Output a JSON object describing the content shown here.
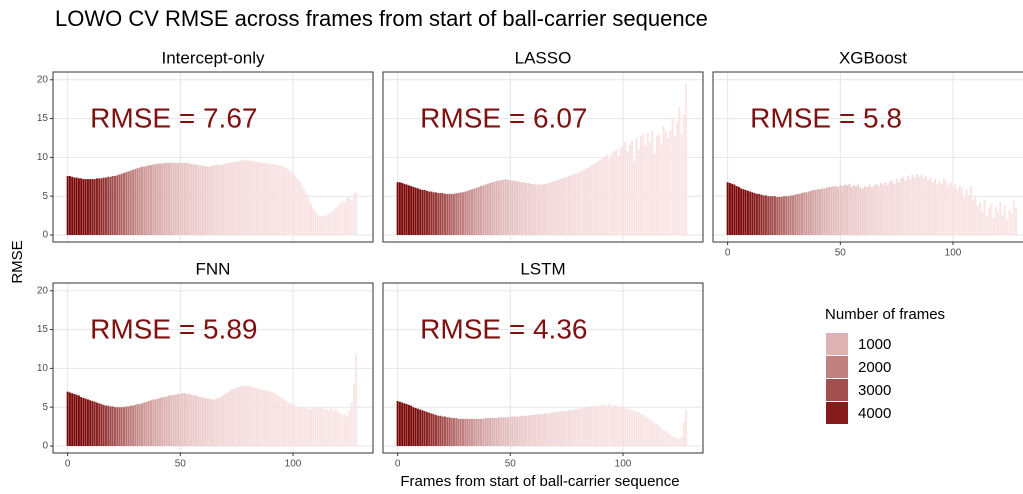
{
  "chart_data": {
    "type": "bar",
    "title": "LOWO CV RMSE across frames from start of ball-carrier sequence",
    "x_label": "Frames from start of ball-carrier sequence",
    "y_label": "RMSE",
    "x": [
      0,
      1,
      2,
      3,
      4,
      5,
      6,
      7,
      8,
      9,
      10,
      11,
      12,
      13,
      14,
      15,
      16,
      17,
      18,
      19,
      20,
      21,
      22,
      23,
      24,
      25,
      26,
      27,
      28,
      29,
      30,
      31,
      32,
      33,
      34,
      35,
      36,
      37,
      38,
      39,
      40,
      41,
      42,
      43,
      44,
      45,
      46,
      47,
      48,
      49,
      50,
      51,
      52,
      53,
      54,
      55,
      56,
      57,
      58,
      59,
      60,
      61,
      62,
      63,
      64,
      65,
      66,
      67,
      68,
      69,
      70,
      71,
      72,
      73,
      74,
      75,
      76,
      77,
      78,
      79,
      80,
      81,
      82,
      83,
      84,
      85,
      86,
      87,
      88,
      89,
      90,
      91,
      92,
      93,
      94,
      95,
      96,
      97,
      98,
      99,
      100,
      101,
      102,
      103,
      104,
      105,
      106,
      107,
      108,
      109,
      110,
      111,
      112,
      113,
      114,
      115,
      116,
      117,
      118,
      119,
      120,
      121,
      122,
      123,
      124,
      125,
      126,
      127,
      128
    ],
    "frame_counts": [
      4400,
      4400,
      4400,
      4400,
      4390,
      4380,
      4360,
      4330,
      4290,
      4240,
      4170,
      4090,
      4000,
      3900,
      3790,
      3670,
      3550,
      3420,
      3290,
      3160,
      3030,
      2900,
      2770,
      2650,
      2530,
      2410,
      2300,
      2190,
      2090,
      1990,
      1900,
      1810,
      1720,
      1640,
      1560,
      1490,
      1420,
      1350,
      1290,
      1230,
      1170,
      1110,
      1060,
      1010,
      960,
      915,
      870,
      830,
      790,
      750,
      715,
      680,
      650,
      620,
      590,
      560,
      535,
      510,
      485,
      460,
      440,
      420,
      400,
      380,
      362,
      345,
      328,
      312,
      297,
      283,
      270,
      257,
      245,
      233,
      222,
      211,
      201,
      191,
      182,
      173,
      165,
      157,
      149,
      142,
      135,
      128,
      122,
      116,
      110,
      105,
      100,
      95,
      90,
      86,
      82,
      78,
      74,
      70,
      67,
      64,
      61,
      58,
      55,
      52,
      49,
      47,
      45,
      43,
      41,
      39,
      37,
      35,
      33,
      31,
      29,
      27,
      25,
      23,
      21,
      19,
      17,
      15,
      13,
      11,
      9,
      7,
      5,
      3,
      2
    ],
    "xlim": [
      -6.5,
      135.5
    ],
    "xticks": [
      0,
      50,
      100
    ],
    "ylim": [
      -0.9,
      21
    ],
    "yticks": [
      0,
      5,
      10,
      15,
      20
    ],
    "grid": true,
    "color_scale": {
      "low": "#ddb3b3",
      "high": "#861b1b"
    },
    "legend": {
      "title": "Number of frames",
      "keys": [
        1000,
        2000,
        3000,
        4000
      ]
    },
    "panels": [
      {
        "title": "Intercept-only",
        "annotation": "RMSE = 7.67",
        "values": [
          7.6,
          7.6,
          7.5,
          7.4,
          7.4,
          7.3,
          7.3,
          7.2,
          7.2,
          7.2,
          7.2,
          7.2,
          7.2,
          7.3,
          7.3,
          7.3,
          7.4,
          7.4,
          7.5,
          7.5,
          7.6,
          7.6,
          7.7,
          7.8,
          7.9,
          8.0,
          8.1,
          8.2,
          8.3,
          8.4,
          8.5,
          8.6,
          8.7,
          8.8,
          8.8,
          8.9,
          9.0,
          9.0,
          9.1,
          9.1,
          9.2,
          9.2,
          9.2,
          9.3,
          9.3,
          9.3,
          9.3,
          9.3,
          9.3,
          9.3,
          9.3,
          9.3,
          9.3,
          9.3,
          9.2,
          9.2,
          9.1,
          9.1,
          9.0,
          9.0,
          8.9,
          8.9,
          8.8,
          8.8,
          8.9,
          9.0,
          9.0,
          9.1,
          9.0,
          9.1,
          9.2,
          9.2,
          9.3,
          9.4,
          9.4,
          9.5,
          9.5,
          9.6,
          9.6,
          9.7,
          9.6,
          9.6,
          9.5,
          9.5,
          9.4,
          9.4,
          9.3,
          9.3,
          9.3,
          9.2,
          9.2,
          9.1,
          9.1,
          9.0,
          9.0,
          8.9,
          8.8,
          8.6,
          8.4,
          8.2,
          8.0,
          7.7,
          7.3,
          6.9,
          6.4,
          5.9,
          5.3,
          4.7,
          4.1,
          3.5,
          3.0,
          2.6,
          2.5,
          2.4,
          2.4,
          2.6,
          2.8,
          3.0,
          3.2,
          3.5,
          3.8,
          4.1,
          4.4,
          4.2,
          4.8,
          5.0,
          4.5,
          5.3,
          5.5
        ]
      },
      {
        "title": "LASSO",
        "annotation": "RMSE = 6.07",
        "values": [
          6.8,
          6.8,
          6.7,
          6.6,
          6.5,
          6.4,
          6.3,
          6.2,
          6.1,
          6.0,
          5.9,
          5.8,
          5.8,
          5.7,
          5.6,
          5.6,
          5.5,
          5.5,
          5.4,
          5.4,
          5.4,
          5.3,
          5.3,
          5.3,
          5.3,
          5.3,
          5.4,
          5.4,
          5.5,
          5.5,
          5.6,
          5.7,
          5.8,
          5.9,
          6.0,
          6.1,
          6.2,
          6.3,
          6.4,
          6.5,
          6.6,
          6.7,
          6.8,
          6.9,
          7.0,
          7.0,
          7.1,
          7.1,
          7.2,
          7.1,
          7.1,
          7.0,
          7.0,
          6.9,
          6.9,
          6.8,
          6.8,
          6.7,
          6.7,
          6.6,
          6.6,
          6.5,
          6.5,
          6.5,
          6.5,
          6.6,
          6.6,
          6.7,
          6.8,
          6.9,
          7.0,
          7.1,
          7.2,
          7.3,
          7.4,
          7.5,
          7.6,
          7.7,
          7.8,
          7.9,
          8.0,
          8.1,
          8.3,
          8.4,
          8.6,
          8.8,
          9.0,
          9.1,
          9.3,
          9.5,
          9.7,
          9.9,
          10.1,
          10.3,
          9.8,
          10.5,
          10.8,
          11.0,
          10.2,
          11.3,
          11.5,
          12.0,
          10.8,
          11.6,
          12.2,
          9.5,
          12.5,
          11.0,
          12.8,
          13.0,
          11.5,
          13.2,
          12.0,
          13.5,
          10.5,
          12.8,
          13.0,
          11.8,
          14.0,
          13.3,
          12.5,
          13.5,
          15.0,
          12.8,
          14.5,
          16.5,
          13.0,
          15.5,
          19.5
        ]
      },
      {
        "title": "XGBoost",
        "annotation": "RMSE = 5.8",
        "values": [
          6.8,
          6.7,
          6.6,
          6.5,
          6.3,
          6.2,
          6.0,
          5.9,
          5.8,
          5.7,
          5.6,
          5.5,
          5.4,
          5.3,
          5.3,
          5.2,
          5.1,
          5.1,
          5.0,
          5.0,
          5.0,
          5.0,
          4.9,
          4.9,
          4.9,
          5.0,
          5.0,
          5.0,
          5.1,
          5.1,
          5.2,
          5.3,
          5.3,
          5.4,
          5.5,
          5.5,
          5.6,
          5.7,
          5.8,
          5.8,
          5.9,
          5.9,
          6.0,
          6.0,
          6.1,
          6.2,
          6.2,
          6.3,
          6.3,
          6.2,
          6.4,
          6.3,
          6.5,
          6.4,
          6.6,
          6.2,
          6.4,
          6.3,
          6.5,
          6.1,
          6.0,
          6.3,
          6.2,
          6.5,
          6.1,
          6.4,
          6.6,
          6.3,
          6.7,
          6.5,
          6.8,
          6.4,
          6.9,
          7.0,
          6.6,
          7.2,
          6.8,
          7.3,
          7.5,
          7.0,
          7.6,
          7.2,
          7.8,
          7.4,
          7.9,
          7.5,
          7.8,
          7.3,
          7.6,
          7.1,
          7.4,
          6.8,
          7.2,
          6.5,
          7.0,
          6.6,
          7.3,
          6.9,
          6.4,
          6.8,
          6.2,
          6.6,
          5.8,
          6.4,
          6.0,
          4.8,
          5.9,
          5.2,
          6.3,
          4.5,
          5.0,
          3.8,
          4.2,
          3.0,
          4.5,
          2.5,
          3.5,
          4.0,
          2.2,
          3.6,
          3.0,
          4.2,
          2.6,
          3.8,
          2.0,
          3.2,
          2.8,
          4.5,
          3.5
        ]
      },
      {
        "title": "FNN",
        "annotation": "RMSE = 5.89",
        "values": [
          7.0,
          6.9,
          6.8,
          6.7,
          6.6,
          6.5,
          6.3,
          6.2,
          6.1,
          6.0,
          5.9,
          5.8,
          5.7,
          5.6,
          5.5,
          5.4,
          5.3,
          5.2,
          5.2,
          5.1,
          5.1,
          5.0,
          5.0,
          5.0,
          5.0,
          5.0,
          5.1,
          5.1,
          5.2,
          5.2,
          5.3,
          5.4,
          5.4,
          5.5,
          5.6,
          5.7,
          5.8,
          5.9,
          6.0,
          6.0,
          6.1,
          6.2,
          6.3,
          6.3,
          6.4,
          6.5,
          6.5,
          6.6,
          6.6,
          6.7,
          6.7,
          6.8,
          6.8,
          6.7,
          6.7,
          6.6,
          6.5,
          6.5,
          6.4,
          6.3,
          6.2,
          6.2,
          6.1,
          6.1,
          6.0,
          6.0,
          6.1,
          6.2,
          6.3,
          6.5,
          6.7,
          6.9,
          7.1,
          7.3,
          7.4,
          7.5,
          7.6,
          7.7,
          7.8,
          7.7,
          7.8,
          7.7,
          7.6,
          7.5,
          7.4,
          7.4,
          7.3,
          7.2,
          7.2,
          7.1,
          7.0,
          6.9,
          6.8,
          6.6,
          6.4,
          6.2,
          6.0,
          5.8,
          5.6,
          5.4,
          5.3,
          5.2,
          5.1,
          5.0,
          5.0,
          4.9,
          4.9,
          4.8,
          4.8,
          4.9,
          5.0,
          4.8,
          4.9,
          5.0,
          4.7,
          4.8,
          4.6,
          4.9,
          4.5,
          4.7,
          4.4,
          4.2,
          4.0,
          4.1,
          3.8,
          4.5,
          5.5,
          8.0,
          11.8
        ]
      },
      {
        "title": "LSTM",
        "annotation": "RMSE = 4.36",
        "values": [
          5.8,
          5.7,
          5.6,
          5.5,
          5.4,
          5.3,
          5.2,
          5.0,
          4.9,
          4.8,
          4.7,
          4.6,
          4.5,
          4.4,
          4.3,
          4.2,
          4.1,
          4.0,
          3.9,
          3.9,
          3.8,
          3.8,
          3.7,
          3.7,
          3.6,
          3.6,
          3.6,
          3.5,
          3.5,
          3.5,
          3.5,
          3.5,
          3.5,
          3.5,
          3.5,
          3.5,
          3.5,
          3.5,
          3.5,
          3.6,
          3.6,
          3.6,
          3.6,
          3.6,
          3.6,
          3.7,
          3.7,
          3.7,
          3.7,
          3.7,
          3.8,
          3.8,
          3.8,
          3.8,
          3.8,
          3.9,
          3.9,
          3.9,
          3.9,
          4.0,
          4.0,
          4.0,
          4.1,
          4.1,
          4.1,
          4.2,
          4.2,
          4.2,
          4.3,
          4.3,
          4.4,
          4.4,
          4.4,
          4.5,
          4.5,
          4.5,
          4.6,
          4.6,
          4.7,
          4.7,
          4.8,
          4.8,
          4.9,
          4.9,
          5.0,
          5.0,
          5.1,
          5.1,
          5.1,
          5.2,
          5.2,
          5.3,
          5.3,
          5.1,
          5.4,
          5.0,
          5.3,
          5.2,
          5.0,
          5.1,
          4.9,
          5.0,
          4.7,
          4.8,
          4.5,
          4.6,
          4.3,
          4.4,
          4.1,
          4.0,
          3.8,
          3.6,
          3.4,
          3.2,
          3.0,
          2.8,
          2.6,
          2.3,
          2.1,
          1.9,
          1.7,
          1.5,
          1.3,
          1.1,
          1.0,
          0.9,
          1.2,
          3.0,
          4.7
        ]
      }
    ]
  }
}
